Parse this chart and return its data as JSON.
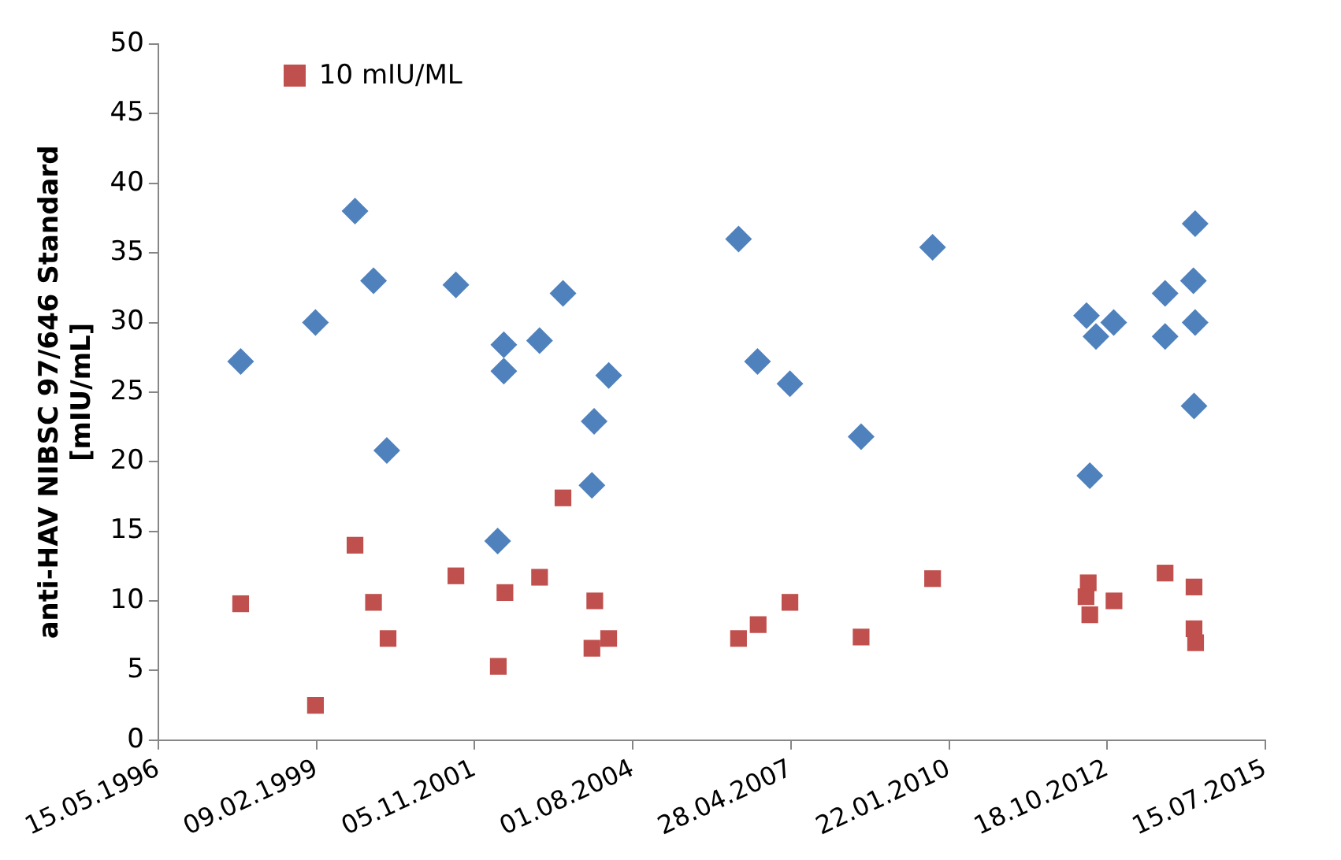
{
  "chart_data": {
    "type": "scatter",
    "ylabel": "anti-HAV NIBSC 97/646 Standard [mIU/mL]",
    "legend": "top left",
    "grid": false,
    "xlim": [
      "1996-05-15",
      "2015-07-15"
    ],
    "xticks": [
      {
        "value": "1996-05-15",
        "label": "15.05.1996"
      },
      {
        "value": "1999-02-09",
        "label": "09.02.1999"
      },
      {
        "value": "2001-11-05",
        "label": "05.11.2001"
      },
      {
        "value": "2004-08-01",
        "label": "01.08.2004"
      },
      {
        "value": "2007-04-28",
        "label": "28.04.2007"
      },
      {
        "value": "2010-01-22",
        "label": "22.01.2010"
      },
      {
        "value": "2012-10-18",
        "label": "18.10.2012"
      },
      {
        "value": "2015-07-15",
        "label": "15.07.2015"
      }
    ],
    "ylim": [
      0,
      50
    ],
    "yticks": [
      0,
      5,
      10,
      15,
      20,
      25,
      30,
      35,
      40,
      45,
      50
    ],
    "series": [
      {
        "color": "#4f81bd",
        "marker": "diamond",
        "x": [
          "1997-10-18",
          "1999-02-03",
          "1999-10-11",
          "2000-02-05",
          "2000-04-29",
          "2001-07-10",
          "2002-05-09",
          "2002-05-09",
          "2002-03-31",
          "2002-12-21",
          "2003-05-18",
          "2003-12-01",
          "2003-11-17",
          "2004-03-02",
          "2006-06-01",
          "2006-09-29",
          "2007-04-22",
          "2008-07-15",
          "2009-10-10",
          "2012-06-09",
          "2012-11-28",
          "2012-08-08",
          "2012-06-30",
          "2013-10-19",
          "2013-10-19",
          "2014-04-16",
          "2014-04-27",
          "2014-04-27",
          "2014-04-20"
        ],
        "values": [
          27.2,
          30.0,
          38.0,
          33.0,
          20.8,
          32.7,
          28.4,
          26.5,
          14.3,
          28.7,
          32.1,
          22.9,
          18.3,
          26.2,
          36.0,
          27.2,
          25.6,
          21.8,
          35.4,
          30.5,
          30.0,
          29.0,
          19.0,
          32.1,
          29.0,
          33.0,
          37.1,
          30.0,
          24.0
        ]
      },
      {
        "name": "10 mIU/ML",
        "color": "#c0504d",
        "marker": "square",
        "x": [
          "1997-10-18",
          "1999-02-03",
          "1999-10-11",
          "2000-02-05",
          "2000-05-07",
          "2001-07-10",
          "2002-04-04",
          "2002-05-16",
          "2002-12-21",
          "2003-05-18",
          "2003-12-05",
          "2004-03-02",
          "2003-11-17",
          "2006-06-01",
          "2006-10-03",
          "2007-04-22",
          "2008-07-15",
          "2009-10-10",
          "2012-06-20",
          "2012-06-30",
          "2012-06-06",
          "2012-11-30",
          "2013-10-19",
          "2014-04-20",
          "2014-04-20",
          "2014-04-30"
        ],
        "values": [
          9.8,
          2.5,
          14.0,
          9.9,
          7.3,
          11.8,
          5.3,
          10.6,
          11.7,
          17.4,
          10.0,
          7.3,
          6.6,
          7.3,
          8.3,
          9.9,
          7.4,
          11.6,
          11.3,
          9.0,
          10.3,
          10.0,
          12.0,
          11.0,
          8.0,
          7.0
        ]
      }
    ]
  }
}
